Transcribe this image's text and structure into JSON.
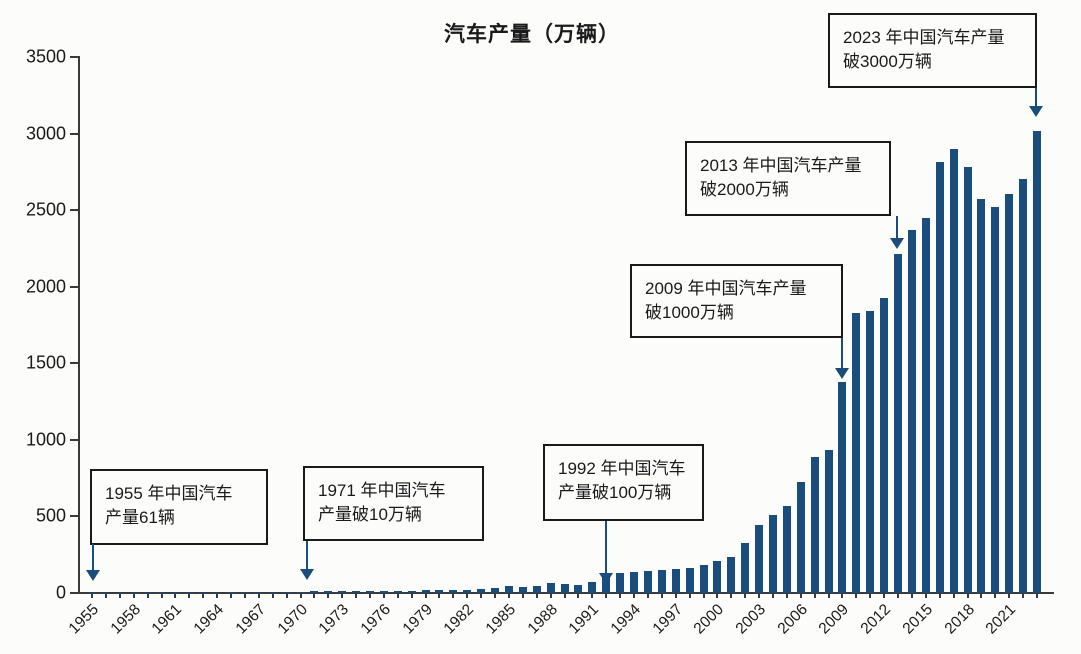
{
  "title": "汽车产量（万辆）",
  "colors": {
    "bar": "#1b4d7c",
    "arrow": "#1b4d7c",
    "axis": "#3a3a3a",
    "background": "#fcfcfb",
    "annotation_border": "#1a1a1a"
  },
  "y_axis": {
    "tick_labels": [
      "0",
      "500",
      "1000",
      "1500",
      "2000",
      "2500",
      "3000",
      "3500"
    ]
  },
  "x_axis": {
    "tick_labels": [
      "1955",
      "1958",
      "1961",
      "1964",
      "1967",
      "1970",
      "1973",
      "1976",
      "1979",
      "1982",
      "1985",
      "1988",
      "1991",
      "1994",
      "1997",
      "2000",
      "2003",
      "2006",
      "2009",
      "2012",
      "2015",
      "2018",
      "2021"
    ],
    "label_every_n_years": 3
  },
  "annotations": [
    {
      "year": "1955",
      "line1": "1955 年中国汽车",
      "line2": "产量61辆"
    },
    {
      "year": "1971",
      "line1": "1971 年中国汽车",
      "line2": "产量破10万辆"
    },
    {
      "year": "1992",
      "line1": "1992 年中国汽车",
      "line2": "产量破100万辆"
    },
    {
      "year": "2009",
      "line1": "2009 年中国汽车产量",
      "line2": "破1000万辆"
    },
    {
      "year": "2013",
      "line1": "2013 年中国汽车产量",
      "line2": "破2000万辆"
    },
    {
      "year": "2023",
      "line1": "2023 年中国汽车产量",
      "line2": "破3000万辆"
    }
  ],
  "chart_data": {
    "type": "bar",
    "title": "汽车产量（万辆）",
    "xlabel": "",
    "ylabel": "",
    "ylim": [
      0,
      3500
    ],
    "grid": false,
    "legend": "none",
    "x": [
      1955,
      1956,
      1957,
      1958,
      1959,
      1960,
      1961,
      1962,
      1963,
      1964,
      1965,
      1966,
      1967,
      1968,
      1969,
      1970,
      1971,
      1972,
      1973,
      1974,
      1975,
      1976,
      1977,
      1978,
      1979,
      1980,
      1981,
      1982,
      1983,
      1984,
      1985,
      1986,
      1987,
      1988,
      1989,
      1990,
      1991,
      1992,
      1993,
      1994,
      1995,
      1996,
      1997,
      1998,
      1999,
      2000,
      2001,
      2002,
      2003,
      2004,
      2005,
      2006,
      2007,
      2008,
      2009,
      2010,
      2011,
      2012,
      2013,
      2014,
      2015,
      2016,
      2017,
      2018,
      2019,
      2020,
      2021,
      2022,
      2023
    ],
    "values": [
      0.0061,
      0.17,
      0.79,
      1.6,
      1.97,
      2.26,
      0.35,
      0.94,
      2.06,
      2.81,
      4.05,
      5.59,
      2.01,
      2.54,
      5.35,
      8.72,
      11.11,
      10.82,
      11.63,
      10.45,
      13.96,
      13.52,
      12.54,
      14.91,
      18.57,
      22.23,
      17.56,
      19.63,
      23.98,
      31.64,
      43.72,
      36.98,
      47.25,
      64.69,
      58.35,
      51.4,
      71.42,
      106.17,
      129.85,
      136.69,
      145.27,
      147.52,
      158.25,
      163,
      183.2,
      206.82,
      234.17,
      325.1,
      444.37,
      507.05,
      570.77,
      727.97,
      888.24,
      934.51,
      1379.1,
      1826.47,
      1841.89,
      1927.18,
      2211.68,
      2372.29,
      2450.33,
      2811.88,
      2901.54,
      2780.92,
      2572.1,
      2522.5,
      2608.2,
      2702.1,
      3016.1
    ]
  }
}
